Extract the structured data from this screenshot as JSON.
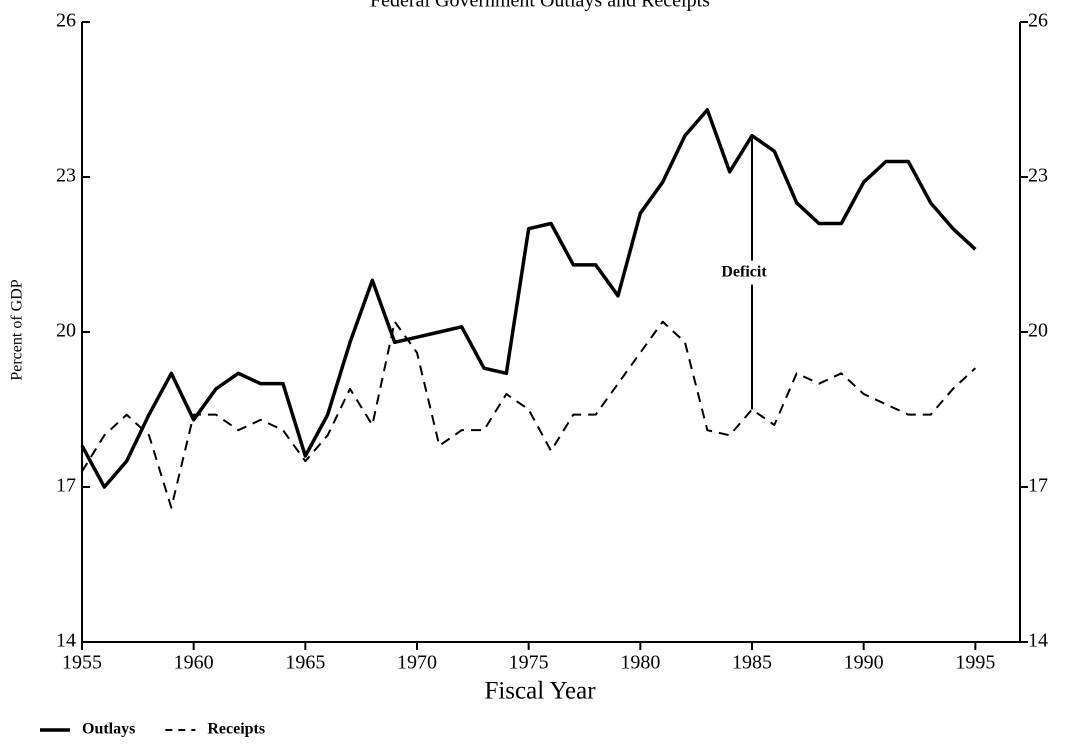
{
  "chart_data": {
    "type": "line",
    "title": "Federal Government Outlays and Receipts",
    "x_label": "Fiscal Year",
    "y_label": "Percent of GDP",
    "x": [
      1955,
      1956,
      1957,
      1958,
      1959,
      1960,
      1961,
      1962,
      1963,
      1964,
      1965,
      1966,
      1967,
      1968,
      1969,
      1970,
      1971,
      1972,
      1973,
      1974,
      1975,
      1976,
      1977,
      1978,
      1979,
      1980,
      1981,
      1982,
      1983,
      1984,
      1985,
      1986,
      1987,
      1988,
      1989,
      1990,
      1991,
      1992,
      1993,
      1994,
      1995
    ],
    "series": [
      {
        "name": "Outlays",
        "color": "#000000",
        "line_style": "solid",
        "values": [
          17.8,
          17.0,
          17.5,
          18.4,
          19.2,
          18.3,
          18.9,
          19.2,
          19.0,
          19.0,
          17.6,
          18.4,
          19.8,
          21.0,
          19.8,
          19.9,
          20.0,
          20.1,
          19.3,
          19.2,
          22.0,
          22.1,
          21.3,
          21.3,
          20.7,
          22.3,
          22.9,
          23.8,
          24.3,
          23.1,
          23.8,
          23.5,
          22.5,
          22.1,
          22.1,
          22.9,
          23.3,
          23.3,
          22.5,
          22.0,
          21.6
        ]
      },
      {
        "name": "Receipts",
        "color": "#000000",
        "line_style": "dashed",
        "values": [
          17.3,
          18.0,
          18.4,
          18.0,
          16.6,
          18.4,
          18.4,
          18.1,
          18.3,
          18.1,
          17.5,
          18.0,
          18.9,
          18.2,
          20.2,
          19.6,
          17.8,
          18.1,
          18.1,
          18.8,
          18.5,
          17.7,
          18.4,
          18.4,
          19.0,
          19.6,
          20.2,
          19.8,
          18.1,
          18.0,
          18.5,
          18.2,
          19.2,
          19.0,
          19.2,
          18.8,
          18.6,
          18.4,
          18.4,
          18.9,
          19.3
        ]
      }
    ],
    "annotation": {
      "text": "Deficit",
      "x": 1985
    },
    "xlim": [
      1955,
      1997
    ],
    "xticks": [
      1955,
      1960,
      1965,
      1970,
      1975,
      1980,
      1985,
      1990,
      1995
    ],
    "ylim": [
      14,
      26
    ],
    "yticks": [
      14,
      17,
      20,
      23,
      26
    ],
    "y2lim": [
      14,
      26
    ],
    "y2ticks": [
      14,
      17,
      20,
      23,
      26
    ],
    "grid": false,
    "legend": "bottom-left"
  }
}
